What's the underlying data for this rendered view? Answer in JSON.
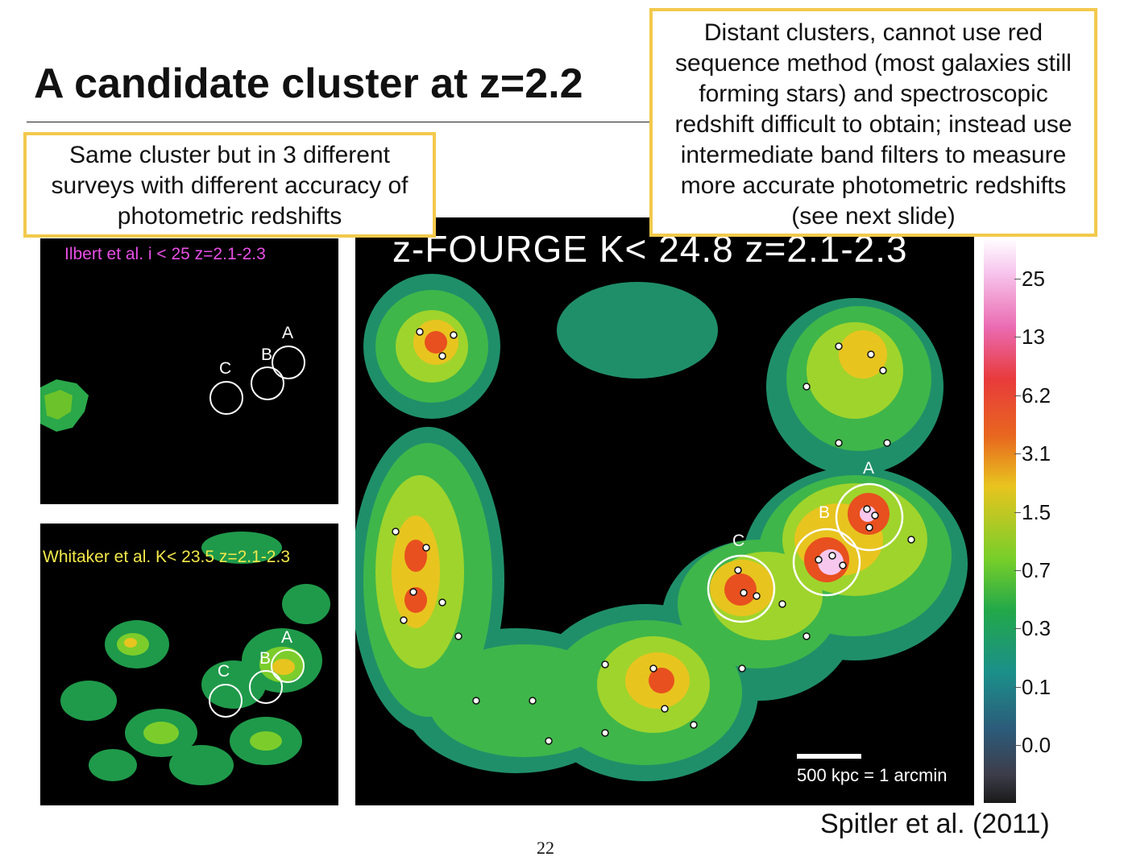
{
  "slide": {
    "title": "A candidate cluster at z=2.2",
    "callout_right": "Distant clusters, cannot use red sequence method (most galaxies still forming stars) and spectroscopic redshift difficult to obtain; instead use intermediate band filters to measure more accurate photometric redshifts (see next slide)",
    "callout_left": "Same cluster but in 3 different surveys with different accuracy of photometric redshifts",
    "citation": "Spitler et al. (2011)",
    "page_number": "22"
  },
  "panels": {
    "ilbert": {
      "label": "Ilbert et al.  i < 25  z=2.1-2.3",
      "label_color": "#e84ee6"
    },
    "whitaker": {
      "label": "Whitaker et al.  K< 23.5  z=2.1-2.3",
      "label_color": "#f3e84a"
    },
    "zfourge": {
      "label": "z-FOURGE  K< 24.8  z=2.1-2.3",
      "scale_label": "500 kpc = 1 arcmin"
    }
  },
  "circle_labels": {
    "a": "A",
    "b": "B",
    "c": "C"
  },
  "colorbar": {
    "ticks": [
      "25",
      "13",
      "6.2",
      "3.1",
      "1.5",
      "0.7",
      "0.3",
      "0.1",
      "0.0"
    ]
  }
}
